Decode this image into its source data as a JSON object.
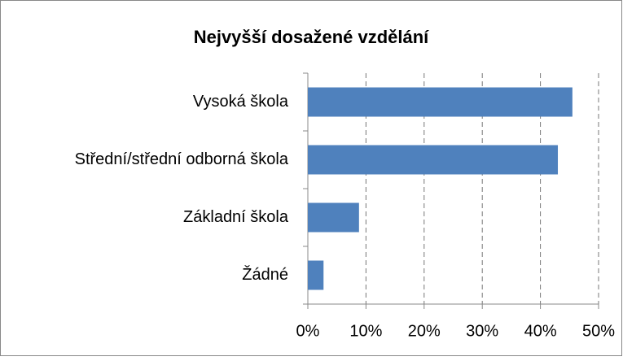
{
  "chart_data": {
    "type": "bar",
    "orientation": "horizontal",
    "title": "Nejvyšší dosažené vzdělání",
    "categories": [
      "Vysoká škola",
      "Střední/střední odborná škola",
      "Základní škola",
      "Žádné"
    ],
    "values": [
      45.5,
      43.0,
      8.8,
      2.7
    ],
    "color": "#4f81bd",
    "xlim": [
      0,
      50
    ],
    "xticks": [
      {
        "value": 0,
        "label": "0%"
      },
      {
        "value": 10,
        "label": "10%"
      },
      {
        "value": 20,
        "label": "20%"
      },
      {
        "value": 30,
        "label": "30%"
      },
      {
        "value": 40,
        "label": "40%"
      },
      {
        "value": 50,
        "label": "50%"
      }
    ],
    "grid": true
  }
}
